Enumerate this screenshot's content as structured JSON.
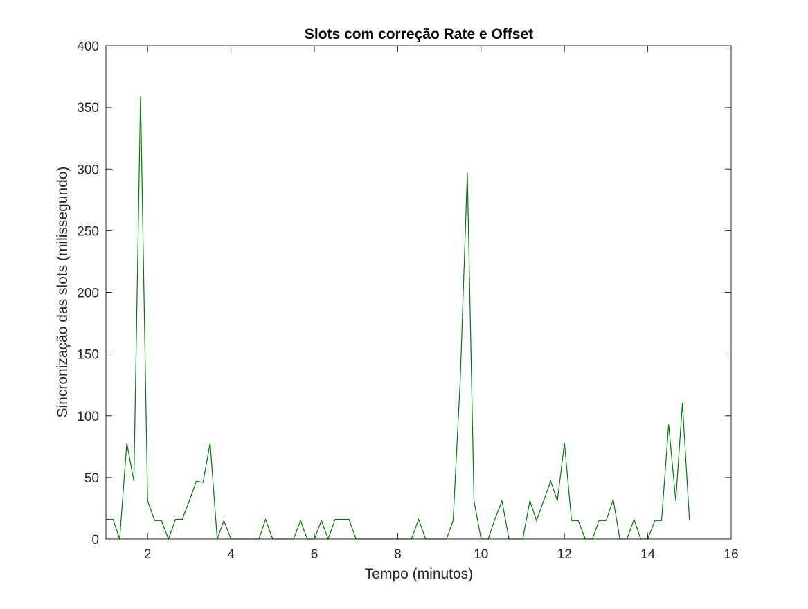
{
  "chart_data": {
    "type": "line",
    "title": "Slots com correção Rate e Offset",
    "xlabel": "Tempo (minutos)",
    "ylabel": "Sincronização das slots (milissegundo)",
    "xlim": [
      1,
      16
    ],
    "ylim": [
      0,
      400
    ],
    "xticks": [
      2,
      4,
      6,
      8,
      10,
      12,
      14,
      16
    ],
    "yticks": [
      0,
      50,
      100,
      150,
      200,
      250,
      300,
      350,
      400
    ],
    "grid": false,
    "series": [
      {
        "color": "#007a00",
        "x": [
          1.0,
          1.17,
          1.33,
          1.5,
          1.67,
          1.83,
          2.0,
          2.17,
          2.33,
          2.5,
          2.67,
          2.83,
          3.0,
          3.17,
          3.33,
          3.5,
          3.67,
          3.83,
          4.0,
          4.17,
          4.33,
          4.5,
          4.67,
          4.83,
          5.0,
          5.17,
          5.33,
          5.5,
          5.67,
          5.83,
          6.0,
          6.17,
          6.33,
          6.5,
          6.67,
          6.83,
          7.0,
          7.17,
          7.33,
          7.5,
          7.67,
          7.83,
          8.0,
          8.17,
          8.33,
          8.5,
          8.67,
          8.83,
          9.0,
          9.17,
          9.33,
          9.5,
          9.67,
          9.83,
          10.0,
          10.17,
          10.33,
          10.5,
          10.67,
          10.83,
          11.0,
          11.17,
          11.33,
          11.5,
          11.67,
          11.83,
          12.0,
          12.17,
          12.33,
          12.5,
          12.67,
          12.83,
          13.0,
          13.17,
          13.33,
          13.5,
          13.67,
          13.83,
          14.0,
          14.17,
          14.33,
          14.5,
          14.67,
          14.83,
          15.0
        ],
        "y": [
          16,
          16,
          0,
          78,
          47,
          359,
          31,
          15,
          15,
          0,
          16,
          16,
          31,
          47,
          46,
          78,
          0,
          15,
          0,
          0,
          0,
          0,
          0,
          16,
          0,
          0,
          0,
          0,
          15,
          0,
          0,
          15,
          0,
          16,
          16,
          16,
          0,
          0,
          0,
          0,
          0,
          0,
          0,
          0,
          0,
          16,
          0,
          0,
          0,
          0,
          15,
          129,
          297,
          31,
          0,
          0,
          16,
          31,
          0,
          0,
          0,
          31,
          15,
          31,
          47,
          31,
          78,
          15,
          15,
          0,
          0,
          15,
          15,
          32,
          0,
          0,
          16,
          0,
          0,
          15,
          15,
          93,
          31,
          110,
          15
        ]
      }
    ]
  }
}
